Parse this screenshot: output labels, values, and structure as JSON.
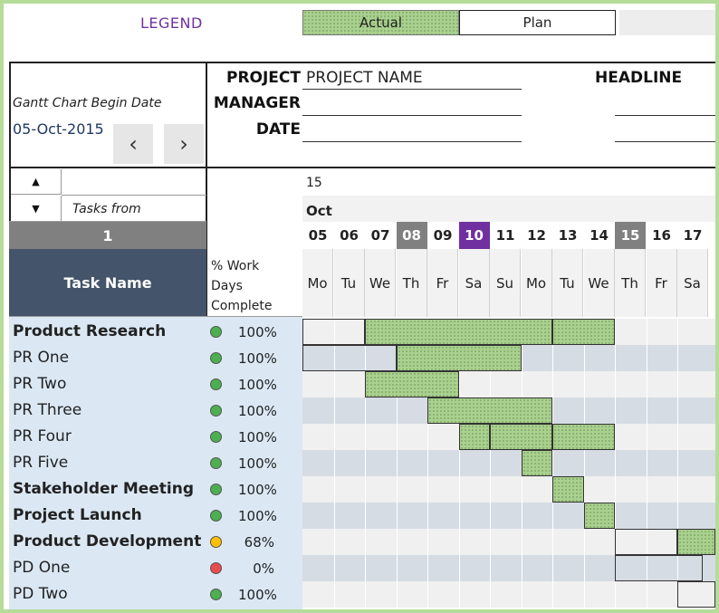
{
  "legend": {
    "title": "LEGEND",
    "actual_label": "Actual",
    "plan_label": "Plan",
    "actual_color": "#a9d18e"
  },
  "header": {
    "begin_label": "Gantt Chart Begin Date",
    "begin_date": "05-Oct-2015",
    "prev_icon": "‹",
    "next_icon": "›",
    "project_label": "PROJECT",
    "project_value": "PROJECT NAME",
    "manager_label": "MANAGER",
    "date_label": "DATE",
    "headline_label": "HEADLINE"
  },
  "controls": {
    "up_icon": "▲",
    "down_icon": "▼",
    "tasks_from_label": "Tasks from",
    "tasks_from_value": "1"
  },
  "columns": {
    "task_name": "Task Name",
    "pct_line1": "% Work",
    "pct_line2": "Days",
    "pct_line3": "Complete"
  },
  "timeline": {
    "year": "15",
    "month": "Oct",
    "days": [
      {
        "num": "05",
        "name": "Mo",
        "highlight": ""
      },
      {
        "num": "06",
        "name": "Tu",
        "highlight": ""
      },
      {
        "num": "07",
        "name": "We",
        "highlight": ""
      },
      {
        "num": "08",
        "name": "Th",
        "highlight": "gray"
      },
      {
        "num": "09",
        "name": "Fr",
        "highlight": ""
      },
      {
        "num": "10",
        "name": "Sa",
        "highlight": "purple"
      },
      {
        "num": "11",
        "name": "Su",
        "highlight": ""
      },
      {
        "num": "12",
        "name": "Mo",
        "highlight": ""
      },
      {
        "num": "13",
        "name": "Tu",
        "highlight": ""
      },
      {
        "num": "14",
        "name": "We",
        "highlight": ""
      },
      {
        "num": "15",
        "name": "Th",
        "highlight": "gray"
      },
      {
        "num": "16",
        "name": "Fr",
        "highlight": ""
      },
      {
        "num": "17",
        "name": "Sa",
        "highlight": ""
      }
    ],
    "highlight_colors": {
      "gray": "#808080",
      "purple": "#7030a0"
    }
  },
  "tasks": [
    {
      "name": "Product Research",
      "bold": true,
      "status": "green",
      "pct": "100%"
    },
    {
      "name": "PR One",
      "bold": false,
      "status": "green",
      "pct": "100%"
    },
    {
      "name": "PR Two",
      "bold": false,
      "status": "green",
      "pct": "100%"
    },
    {
      "name": "PR Three",
      "bold": false,
      "status": "green",
      "pct": "100%"
    },
    {
      "name": "PR Four",
      "bold": false,
      "status": "green",
      "pct": "100%"
    },
    {
      "name": "PR Five",
      "bold": false,
      "status": "green",
      "pct": "100%"
    },
    {
      "name": "Stakeholder Meeting",
      "bold": true,
      "status": "green",
      "pct": "100%"
    },
    {
      "name": "Project Launch",
      "bold": true,
      "status": "green",
      "pct": "100%"
    },
    {
      "name": "Product Development",
      "bold": true,
      "status": "yellow",
      "pct": "68%"
    },
    {
      "name": "PD One",
      "bold": false,
      "status": "red",
      "pct": "0%"
    },
    {
      "name": "PD Two",
      "bold": false,
      "status": "green",
      "pct": "100%"
    }
  ],
  "status_colors": {
    "green": "#4caf50",
    "yellow": "#ffc000",
    "red": "#e84c4c"
  },
  "bars": [
    {
      "row": 0,
      "type": "plan",
      "start": 0,
      "end": 2
    },
    {
      "row": 0,
      "type": "actual",
      "start": 2,
      "end": 8
    },
    {
      "row": 0,
      "type": "actual",
      "start": 8,
      "end": 10
    },
    {
      "row": 1,
      "type": "plan",
      "start": 0,
      "end": 3
    },
    {
      "row": 1,
      "type": "actual",
      "start": 3,
      "end": 7
    },
    {
      "row": 2,
      "type": "actual",
      "start": 2,
      "end": 5
    },
    {
      "row": 3,
      "type": "actual",
      "start": 4,
      "end": 8
    },
    {
      "row": 4,
      "type": "actual",
      "start": 5,
      "end": 6
    },
    {
      "row": 4,
      "type": "actual",
      "start": 6,
      "end": 8
    },
    {
      "row": 4,
      "type": "actual",
      "start": 8,
      "end": 10
    },
    {
      "row": 5,
      "type": "actual",
      "start": 7,
      "end": 8
    },
    {
      "row": 6,
      "type": "actual",
      "start": 8,
      "end": 9
    },
    {
      "row": 7,
      "type": "actual",
      "start": 9,
      "end": 10
    },
    {
      "row": 8,
      "type": "plan",
      "start": 10,
      "end": 12
    },
    {
      "row": 8,
      "type": "actual",
      "start": 12,
      "end": 13.4
    },
    {
      "row": 9,
      "type": "plan",
      "start": 10,
      "end": 12.8
    },
    {
      "row": 10,
      "type": "plan",
      "start": 12,
      "end": 13.4
    }
  ]
}
